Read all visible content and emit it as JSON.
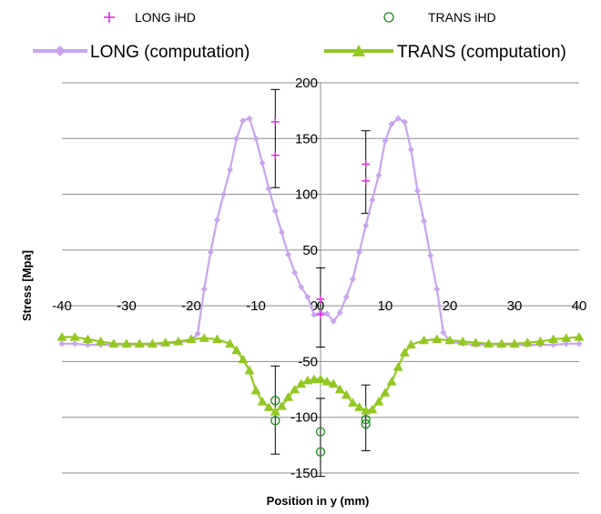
{
  "chart_data": {
    "type": "line",
    "title": "",
    "xlabel": "Position in y (mm)",
    "ylabel": "Stress [Mpa]",
    "xlim": [
      -40,
      40
    ],
    "ylim": [
      -150,
      200
    ],
    "xticks": [
      -40,
      -30,
      -20,
      -10,
      0,
      10,
      20,
      30,
      40
    ],
    "yticks": [
      -150,
      -100,
      -50,
      0,
      50,
      100,
      150,
      200
    ],
    "grid": "horizontal",
    "legend_position": "top",
    "legend": [
      "LONG iHD",
      "TRANS iHD",
      "LONG (computation)",
      "TRANS (computation)"
    ],
    "series": [
      {
        "name": "LONG (computation)",
        "style": "line-diamond",
        "color": "#c9a3f0",
        "x": [
          -40,
          -38,
          -36,
          -34,
          -32,
          -30,
          -28,
          -26,
          -24,
          -22,
          -20,
          -19,
          -18,
          -17,
          -16,
          -15,
          -14,
          -13,
          -12,
          -11,
          -10,
          -9,
          -8,
          -7,
          -6,
          -5,
          -4,
          -3,
          -2,
          -1,
          0,
          1,
          2,
          3,
          4,
          5,
          6,
          7,
          8,
          9,
          10,
          11,
          12,
          13,
          14,
          15,
          16,
          17,
          18,
          19,
          20,
          22,
          24,
          26,
          28,
          30,
          32,
          34,
          36,
          38,
          40
        ],
        "y": [
          -34,
          -34,
          -35,
          -35,
          -35,
          -35,
          -35,
          -35,
          -34,
          -33,
          -31,
          -25,
          15,
          48,
          77,
          100,
          122,
          150,
          166,
          168,
          150,
          128,
          105,
          85,
          66,
          46,
          30,
          17,
          8,
          -8,
          -6,
          -7,
          -14,
          -6,
          8,
          24,
          48,
          72,
          95,
          117,
          148,
          163,
          168,
          165,
          140,
          103,
          76,
          45,
          15,
          -24,
          -32,
          -34,
          -35,
          -35,
          -35,
          -35,
          -35,
          -35,
          -35,
          -34,
          -34
        ]
      },
      {
        "name": "TRANS (computation)",
        "style": "line-triangle",
        "color": "#92c821",
        "x": [
          -40,
          -38,
          -36,
          -34,
          -32,
          -30,
          -28,
          -26,
          -24,
          -22,
          -20,
          -18,
          -16,
          -14,
          -13,
          -12,
          -11,
          -10,
          -9,
          -8,
          -7,
          -6,
          -5,
          -4,
          -3,
          -2,
          -1,
          0,
          1,
          2,
          3,
          4,
          5,
          6,
          7,
          8,
          9,
          10,
          11,
          12,
          13,
          14,
          16,
          18,
          20,
          22,
          24,
          26,
          28,
          30,
          32,
          34,
          36,
          38,
          40
        ],
        "y": [
          -28,
          -28,
          -30,
          -32,
          -34,
          -34,
          -34,
          -34,
          -33,
          -32,
          -30,
          -29,
          -30,
          -34,
          -40,
          -48,
          -58,
          -76,
          -86,
          -91,
          -95,
          -90,
          -82,
          -75,
          -70,
          -67,
          -66,
          -66,
          -68,
          -70,
          -75,
          -80,
          -87,
          -91,
          -94,
          -93,
          -86,
          -78,
          -68,
          -55,
          -42,
          -35,
          -31,
          -30,
          -31,
          -32,
          -33,
          -34,
          -34,
          -34,
          -33,
          -32,
          -30,
          -29,
          -28
        ]
      }
    ],
    "measurements": [
      {
        "name": "LONG iHD",
        "marker": "plus",
        "color": "#e020e0",
        "points": [
          {
            "x": -7,
            "y": 165
          },
          {
            "x": -7,
            "y": 135
          },
          {
            "x": 0,
            "y": 6
          },
          {
            "x": 0,
            "y": -8
          },
          {
            "x": 7,
            "y": 127
          },
          {
            "x": 7,
            "y": 112
          }
        ]
      },
      {
        "name": "TRANS iHD",
        "marker": "circle",
        "color": "#1a8a1a",
        "points": [
          {
            "x": -7,
            "y": -85
          },
          {
            "x": -7,
            "y": -103
          },
          {
            "x": 0,
            "y": -113
          },
          {
            "x": 0,
            "y": -131
          },
          {
            "x": 7,
            "y": -102
          },
          {
            "x": 7,
            "y": -106
          }
        ]
      }
    ],
    "error_bars": [
      {
        "x": -7,
        "low": 106,
        "high": 194
      },
      {
        "x": 0,
        "low": -37,
        "high": 34
      },
      {
        "x": 7,
        "low": 83,
        "high": 157
      },
      {
        "x": -7,
        "low": -133,
        "high": -54
      },
      {
        "x": 0,
        "low": -153,
        "high": -83
      },
      {
        "x": 7,
        "low": -130,
        "high": -71
      }
    ]
  }
}
